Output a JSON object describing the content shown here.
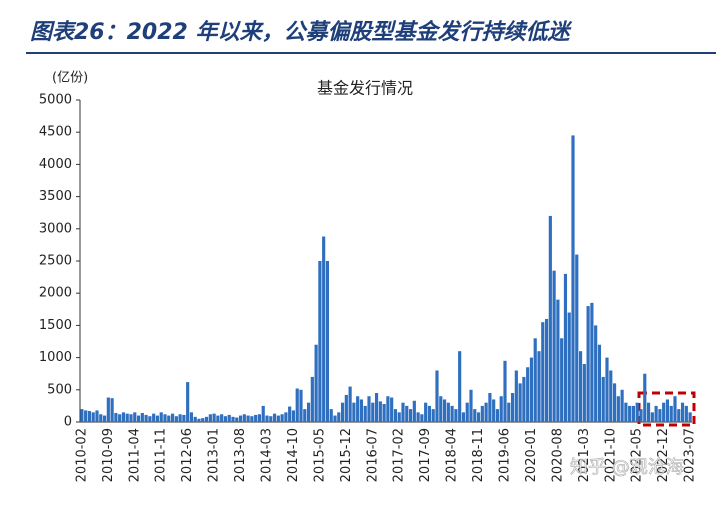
{
  "header": {
    "title": "图表26：2022 年以来，公募偏股型基金发行持续低迷"
  },
  "chart_data": {
    "type": "bar",
    "title": "基金发行情况",
    "y_unit": "(亿份)",
    "color": "#2f6fc0",
    "watermark": "知乎 @观沧海",
    "categories": [
      "2010-02",
      null,
      null,
      null,
      null,
      null,
      null,
      "2010-09",
      null,
      null,
      null,
      null,
      null,
      null,
      "2011-04",
      null,
      null,
      null,
      null,
      null,
      null,
      "2011-11",
      null,
      null,
      null,
      null,
      null,
      null,
      "2012-06",
      null,
      null,
      null,
      null,
      null,
      null,
      "2013-01",
      null,
      null,
      null,
      null,
      null,
      null,
      "2013-08",
      null,
      null,
      null,
      null,
      null,
      null,
      "2014-03",
      null,
      null,
      null,
      null,
      null,
      null,
      "2014-10",
      null,
      null,
      null,
      null,
      null,
      null,
      "2015-05",
      null,
      null,
      null,
      null,
      null,
      null,
      "2015-12",
      null,
      null,
      null,
      null,
      null,
      null,
      "2016-07",
      null,
      null,
      null,
      null,
      null,
      null,
      "2017-02",
      null,
      null,
      null,
      null,
      null,
      null,
      "2017-09",
      null,
      null,
      null,
      null,
      null,
      null,
      "2018-04",
      null,
      null,
      null,
      null,
      null,
      null,
      "2018-11",
      null,
      null,
      null,
      null,
      null,
      null,
      "2019-06",
      null,
      null,
      null,
      null,
      null,
      null,
      "2020-01",
      null,
      null,
      null,
      null,
      null,
      null,
      "2020-08",
      null,
      null,
      null,
      null,
      null,
      null,
      "2021-03",
      null,
      null,
      null,
      null,
      null,
      null,
      "2021-10",
      null,
      null,
      null,
      null,
      null,
      null,
      "2022-05",
      null,
      null,
      null,
      null,
      null,
      null,
      "2022-12",
      null,
      null,
      null,
      null,
      null,
      null,
      "2023-07"
    ],
    "values": [
      200,
      180,
      170,
      150,
      180,
      120,
      100,
      380,
      370,
      140,
      120,
      150,
      130,
      120,
      150,
      100,
      140,
      110,
      90,
      130,
      100,
      150,
      120,
      100,
      130,
      90,
      120,
      110,
      620,
      150,
      80,
      50,
      60,
      80,
      120,
      130,
      100,
      120,
      90,
      110,
      80,
      70,
      100,
      120,
      100,
      90,
      110,
      120,
      250,
      100,
      90,
      130,
      100,
      120,
      150,
      240,
      180,
      520,
      500,
      200,
      300,
      700,
      1200,
      2500,
      2880,
      2500,
      200,
      100,
      150,
      300,
      420,
      550,
      300,
      400,
      350,
      250,
      400,
      300,
      450,
      320,
      280,
      400,
      380,
      200,
      150,
      300,
      250,
      200,
      330,
      150,
      120,
      300,
      250,
      200,
      800,
      400,
      350,
      300,
      250,
      200,
      1100,
      150,
      300,
      500,
      200,
      150,
      250,
      300,
      450,
      350,
      200,
      400,
      950,
      300,
      450,
      800,
      600,
      700,
      850,
      1000,
      1300,
      1100,
      1550,
      1600,
      3200,
      2350,
      1900,
      1300,
      2300,
      1700,
      4450,
      2600,
      1100,
      900,
      1800,
      1850,
      1500,
      1200,
      700,
      1000,
      800,
      600,
      400,
      500,
      300,
      250,
      250,
      300,
      200,
      750,
      300,
      150,
      250,
      200,
      300,
      350,
      250,
      400,
      200,
      300,
      250,
      150
    ],
    "ylim": [
      0,
      5000
    ],
    "yticks": [
      0,
      500,
      1000,
      1500,
      2000,
      2500,
      3000,
      3500,
      4000,
      4500,
      5000
    ]
  }
}
